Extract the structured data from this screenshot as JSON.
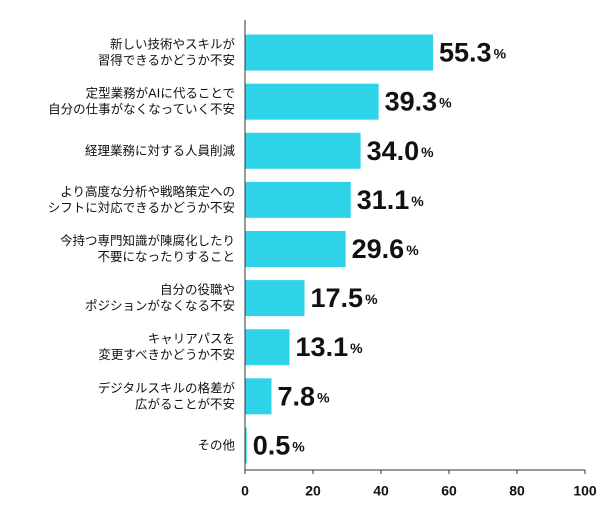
{
  "chart_data": {
    "type": "bar",
    "orientation": "horizontal",
    "categories": [
      "新しい技術やスキルが\n習得できるかどうか不安",
      "定型業務がAIに代ることで\n自分の仕事がなくなっていく不安",
      "経理業務に対する人員削減",
      "より高度な分析や戦略策定への\nシフトに対応できるかどうか不安",
      "今持つ専門知識が陳腐化したり\n不要になったりすること",
      "自分の役職や\nポジションがなくなる不安",
      "キャリアパスを\n変更すべきかどうか不安",
      "デジタルスキルの格差が\n広がることが不安",
      "その他"
    ],
    "values": [
      55.3,
      39.3,
      34.0,
      31.1,
      29.6,
      17.5,
      13.1,
      7.8,
      0.5
    ],
    "value_labels": [
      "55.3%",
      "39.3%",
      "34.0%",
      "31.1%",
      "29.6%",
      "17.5%",
      "13.1%",
      "7.8%",
      "0.5%"
    ],
    "color": "#2fd3e8",
    "xlim": [
      0,
      100
    ],
    "xticks": [
      0,
      20,
      40,
      60,
      80,
      100
    ],
    "grid": false
  }
}
